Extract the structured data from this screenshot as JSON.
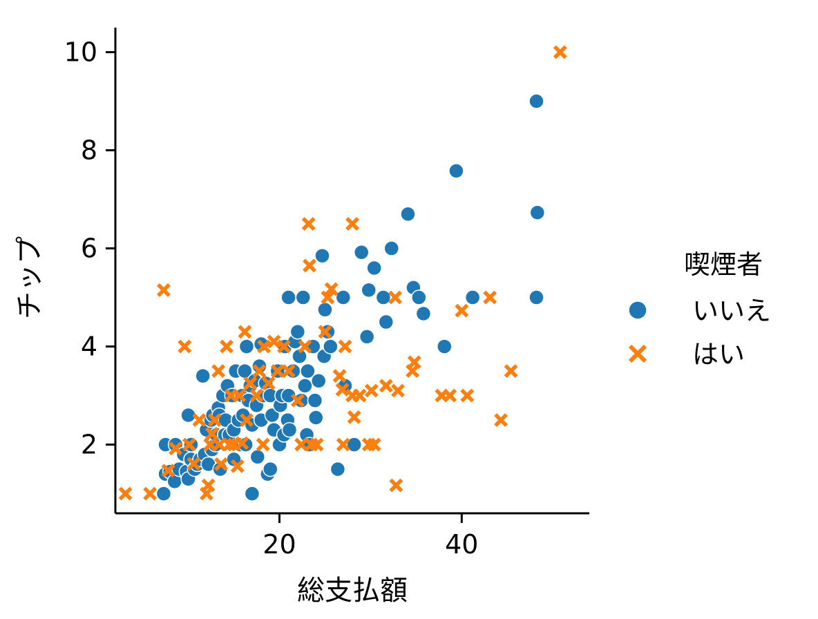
{
  "chart_data": {
    "type": "scatter",
    "xlabel": "総支払額",
    "ylabel": "チップ",
    "xlim": [
      2,
      54
    ],
    "ylim": [
      0.6,
      10.5
    ],
    "xticks": [
      20,
      40
    ],
    "yticks": [
      2,
      4,
      6,
      8,
      10
    ],
    "grid": false,
    "legend": {
      "title": "喫煙者",
      "placement": "center-right outside"
    },
    "series": [
      {
        "name": "いいえ",
        "marker": "circle",
        "color": "#1f77b4",
        "points": [
          [
            7.3,
            1.0
          ],
          [
            7.5,
            2.0
          ],
          [
            7.5,
            1.4
          ],
          [
            8.0,
            1.45
          ],
          [
            8.5,
            1.25
          ],
          [
            8.6,
            2.0
          ],
          [
            9.0,
            1.5
          ],
          [
            9.5,
            1.8
          ],
          [
            9.8,
            1.45
          ],
          [
            10.0,
            1.3
          ],
          [
            10.0,
            2.6
          ],
          [
            10.3,
            1.7
          ],
          [
            10.3,
            2.0
          ],
          [
            10.7,
            1.5
          ],
          [
            11.0,
            1.6
          ],
          [
            11.3,
            1.7
          ],
          [
            11.6,
            3.4
          ],
          [
            11.8,
            1.8
          ],
          [
            12.0,
            2.3
          ],
          [
            12.2,
            1.6
          ],
          [
            12.5,
            2.5
          ],
          [
            12.6,
            1.9
          ],
          [
            12.7,
            2.6
          ],
          [
            13.0,
            2.0
          ],
          [
            13.1,
            2.2
          ],
          [
            13.3,
            2.75
          ],
          [
            13.4,
            2.6
          ],
          [
            13.5,
            1.5
          ],
          [
            13.8,
            3.0
          ],
          [
            14.0,
            2.2
          ],
          [
            14.1,
            2.5
          ],
          [
            14.3,
            3.2
          ],
          [
            14.5,
            2.2
          ],
          [
            14.8,
            3.0
          ],
          [
            15.0,
            1.7
          ],
          [
            15.0,
            2.3
          ],
          [
            15.2,
            3.5
          ],
          [
            15.5,
            2.5
          ],
          [
            15.7,
            2.0
          ],
          [
            15.9,
            3.0
          ],
          [
            16.0,
            2.6
          ],
          [
            16.2,
            3.5
          ],
          [
            16.3,
            2.0
          ],
          [
            16.4,
            4.0
          ],
          [
            16.6,
            2.9
          ],
          [
            16.8,
            3.2
          ],
          [
            17.0,
            1.0
          ],
          [
            17.0,
            2.4
          ],
          [
            17.3,
            3.3
          ],
          [
            17.5,
            2.8
          ],
          [
            17.6,
            1.75
          ],
          [
            17.8,
            3.6
          ],
          [
            18.0,
            2.5
          ],
          [
            18.0,
            4.05
          ],
          [
            18.2,
            3.0
          ],
          [
            18.5,
            3.25
          ],
          [
            18.7,
            1.4
          ],
          [
            19.0,
            1.5
          ],
          [
            19.0,
            3.0
          ],
          [
            19.2,
            2.6
          ],
          [
            19.4,
            2.3
          ],
          [
            19.8,
            3.5
          ],
          [
            20.0,
            2.0
          ],
          [
            20.1,
            2.8
          ],
          [
            20.3,
            3.0
          ],
          [
            20.5,
            2.2
          ],
          [
            20.6,
            4.0
          ],
          [
            20.9,
            2.5
          ],
          [
            21.0,
            3.0
          ],
          [
            21.1,
            2.3
          ],
          [
            21.0,
            5.0
          ],
          [
            21.5,
            3.5
          ],
          [
            21.7,
            4.1
          ],
          [
            22.0,
            4.3
          ],
          [
            22.2,
            3.8
          ],
          [
            22.4,
            2.9
          ],
          [
            22.6,
            5.0
          ],
          [
            22.8,
            3.2
          ],
          [
            23.0,
            2.2
          ],
          [
            23.1,
            3.5
          ],
          [
            23.3,
            2.0
          ],
          [
            23.7,
            4.0
          ],
          [
            23.9,
            2.9
          ],
          [
            24.0,
            2.55
          ],
          [
            24.3,
            3.3
          ],
          [
            24.7,
            5.85
          ],
          [
            24.9,
            3.8
          ],
          [
            25.0,
            4.75
          ],
          [
            25.3,
            4.3
          ],
          [
            25.6,
            4.0
          ],
          [
            26.4,
            1.5
          ],
          [
            27.0,
            5.0
          ],
          [
            27.2,
            3.2
          ],
          [
            28.2,
            2.0
          ],
          [
            29.0,
            5.92
          ],
          [
            29.6,
            4.2
          ],
          [
            29.8,
            5.15
          ],
          [
            30.4,
            5.6
          ],
          [
            31.4,
            5.0
          ],
          [
            31.7,
            4.5
          ],
          [
            32.3,
            6.0
          ],
          [
            34.1,
            6.7
          ],
          [
            34.7,
            5.2
          ],
          [
            35.3,
            5.0
          ],
          [
            35.8,
            4.67
          ],
          [
            38.1,
            4.0
          ],
          [
            39.4,
            7.58
          ],
          [
            41.2,
            5.0
          ],
          [
            48.2,
            9.0
          ],
          [
            48.3,
            6.73
          ],
          [
            48.2,
            5.0
          ]
        ]
      },
      {
        "name": "はい",
        "marker": "x",
        "color": "#ff7f0e",
        "points": [
          [
            3.1,
            1.0
          ],
          [
            5.8,
            1.0
          ],
          [
            7.3,
            5.15
          ],
          [
            7.8,
            1.47
          ],
          [
            8.6,
            1.92
          ],
          [
            9.6,
            4.0
          ],
          [
            10.1,
            2.0
          ],
          [
            10.6,
            1.61
          ],
          [
            11.2,
            2.5
          ],
          [
            12.0,
            1.0
          ],
          [
            12.2,
            1.17
          ],
          [
            12.4,
            2.0
          ],
          [
            12.6,
            2.22
          ],
          [
            12.9,
            2.5
          ],
          [
            13.3,
            3.5
          ],
          [
            13.4,
            2.0
          ],
          [
            13.6,
            1.6
          ],
          [
            14.2,
            4.0
          ],
          [
            14.5,
            2.0
          ],
          [
            14.7,
            3.0
          ],
          [
            15.0,
            2.0
          ],
          [
            15.4,
            1.56
          ],
          [
            15.6,
            3.0
          ],
          [
            15.9,
            2.03
          ],
          [
            16.2,
            4.3
          ],
          [
            16.4,
            2.5
          ],
          [
            16.8,
            3.25
          ],
          [
            17.5,
            3.0
          ],
          [
            17.8,
            3.5
          ],
          [
            18.2,
            2.0
          ],
          [
            18.3,
            4.0
          ],
          [
            18.8,
            3.25
          ],
          [
            19.4,
            4.1
          ],
          [
            19.8,
            3.5
          ],
          [
            20.5,
            4.0
          ],
          [
            21.0,
            3.5
          ],
          [
            22.0,
            2.9
          ],
          [
            22.4,
            2.0
          ],
          [
            22.8,
            4.0
          ],
          [
            23.2,
            6.5
          ],
          [
            23.3,
            5.65
          ],
          [
            23.5,
            2.0
          ],
          [
            24.1,
            2.0
          ],
          [
            25.0,
            4.3
          ],
          [
            25.3,
            5.0
          ],
          [
            25.7,
            5.17
          ],
          [
            26.6,
            3.4
          ],
          [
            26.9,
            3.12
          ],
          [
            27.0,
            2.0
          ],
          [
            27.2,
            4.0
          ],
          [
            28.0,
            6.5
          ],
          [
            28.0,
            3.0
          ],
          [
            28.2,
            2.56
          ],
          [
            28.8,
            3.0
          ],
          [
            29.8,
            2.0
          ],
          [
            30.1,
            3.1
          ],
          [
            30.4,
            2.0
          ],
          [
            31.7,
            3.2
          ],
          [
            32.7,
            5.0
          ],
          [
            32.8,
            1.17
          ],
          [
            33.0,
            3.1
          ],
          [
            34.6,
            3.5
          ],
          [
            34.8,
            3.68
          ],
          [
            37.8,
            3.0
          ],
          [
            38.7,
            3.0
          ],
          [
            40.0,
            4.73
          ],
          [
            40.6,
            3.0
          ],
          [
            43.1,
            5.0
          ],
          [
            44.3,
            2.5
          ],
          [
            45.4,
            3.5
          ],
          [
            50.8,
            10.0
          ]
        ]
      }
    ]
  }
}
